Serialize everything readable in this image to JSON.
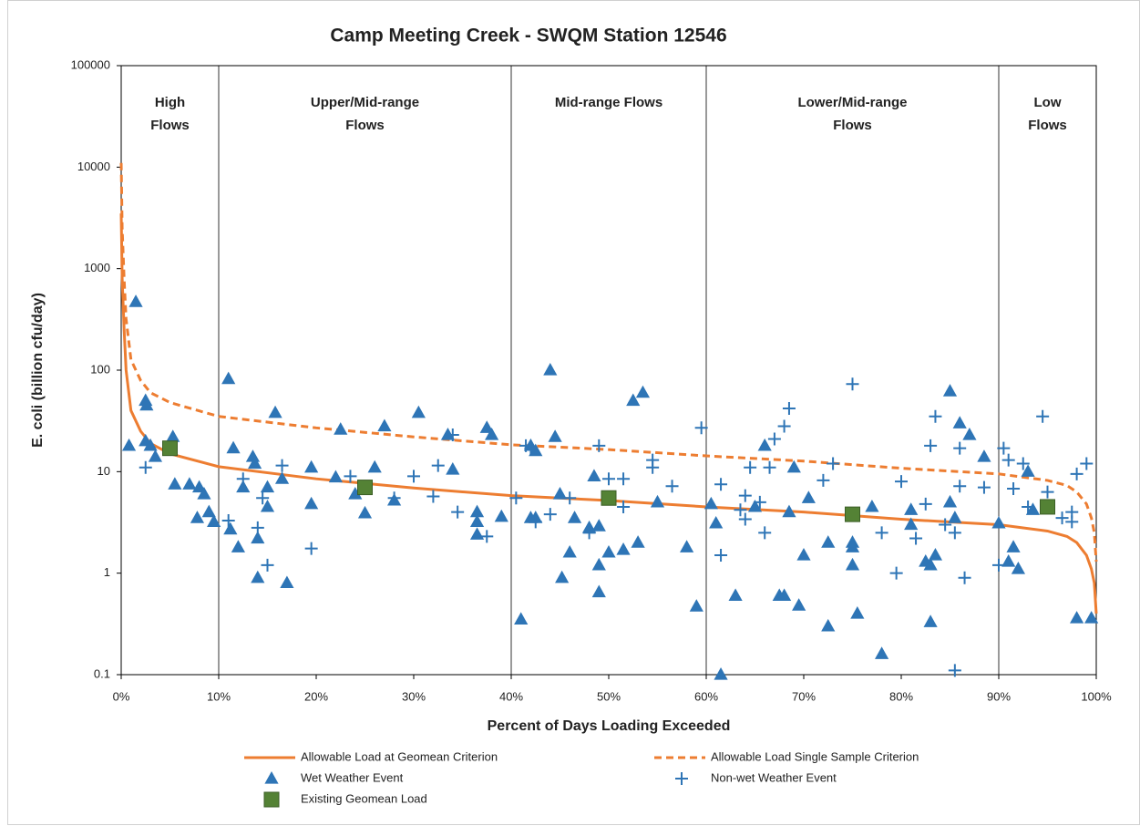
{
  "chart_data": {
    "type": "scatter",
    "title": "Camp Meeting Creek - SWQM Station 12546",
    "xlabel": "Percent of Days Loading Exceeded",
    "ylabel": "E. coli (billion cfu/day)",
    "xlim": [
      0,
      100
    ],
    "xticks": [
      {
        "value": 0,
        "label": "0%"
      },
      {
        "value": 10,
        "label": "10%"
      },
      {
        "value": 20,
        "label": "20%"
      },
      {
        "value": 30,
        "label": "30%"
      },
      {
        "value": 40,
        "label": "40%"
      },
      {
        "value": 50,
        "label": "50%"
      },
      {
        "value": 60,
        "label": "60%"
      },
      {
        "value": 70,
        "label": "70%"
      },
      {
        "value": 80,
        "label": "80%"
      },
      {
        "value": 90,
        "label": "90%"
      },
      {
        "value": 100,
        "label": "100%"
      }
    ],
    "ylim": [
      0.1,
      100000
    ],
    "yticks": [
      0.1,
      1,
      10,
      100,
      1000,
      10000,
      100000
    ],
    "ylog": true,
    "legend": "bottom",
    "regions": [
      {
        "label": [
          "High",
          "Flows"
        ],
        "from": 0,
        "to": 10
      },
      {
        "label": [
          "Upper/Mid-range",
          "Flows"
        ],
        "from": 10,
        "to": 40
      },
      {
        "label": [
          "Mid-range Flows"
        ],
        "from": 40,
        "to": 60
      },
      {
        "label": [
          "Lower/Mid-range",
          "Flows"
        ],
        "from": 60,
        "to": 90
      },
      {
        "label": [
          "Low",
          "Flows"
        ],
        "from": 90,
        "to": 100
      }
    ],
    "series": [
      {
        "name": "Allowable Load at Geomean Criterion",
        "kind": "line",
        "style": "solid",
        "color": "#ed7d31",
        "x": [
          0,
          0.1,
          0.3,
          0.5,
          1,
          2,
          3,
          5,
          10,
          20,
          30,
          40,
          50,
          60,
          70,
          80,
          90,
          95,
          97,
          98,
          99,
          99.5,
          99.8,
          100
        ],
        "values": [
          3500,
          800,
          250,
          100,
          40,
          25,
          19,
          15,
          11.2,
          8.5,
          6.9,
          5.8,
          5.2,
          4.5,
          4,
          3.4,
          3,
          2.6,
          2.3,
          2,
          1.5,
          1.1,
          0.8,
          0.4
        ]
      },
      {
        "name": "Allowable Load Single Sample Criterion",
        "kind": "line",
        "style": "dashed",
        "color": "#ed7d31",
        "x": [
          0,
          0.1,
          0.3,
          0.5,
          1,
          2,
          3,
          5,
          10,
          20,
          30,
          40,
          50,
          60,
          70,
          80,
          90,
          95,
          97,
          98,
          99,
          99.5,
          99.8,
          100
        ],
        "values": [
          11000,
          2500,
          790,
          320,
          127,
          79,
          60,
          48,
          35,
          27,
          22,
          18.4,
          16.5,
          14.3,
          12.7,
          10.8,
          9.5,
          8.2,
          7.3,
          6.3,
          4.8,
          3.5,
          2.5,
          1.3
        ]
      },
      {
        "name": "Wet Weather Event",
        "kind": "scatter",
        "marker": "triangle",
        "color": "#2e75b6",
        "x": [
          1.5,
          0.8,
          2.5,
          2.6,
          2.5,
          3,
          3.5,
          5.3,
          5.5,
          7,
          7.8,
          8,
          8.5,
          9,
          9.5,
          11,
          11.2,
          11.5,
          12,
          12.5,
          13.5,
          13.7,
          14,
          14,
          15,
          15,
          15.8,
          16.5,
          17,
          19.5,
          19.5,
          22,
          22.5,
          24,
          25,
          26,
          27,
          28,
          30.5,
          33.5,
          34,
          36.5,
          36.5,
          36.5,
          37.5,
          38,
          39,
          41,
          42,
          42,
          42.5,
          42.5,
          44,
          44.5,
          45,
          45.2,
          46,
          46.5,
          48,
          48.5,
          49,
          49,
          49,
          50,
          51.5,
          52.5,
          53,
          53.5,
          55,
          58,
          59,
          60.5,
          61,
          61.5,
          63,
          65,
          66,
          67.5,
          68,
          68.5,
          69,
          69.5,
          70,
          70.5,
          72.5,
          72.5,
          75,
          75,
          75,
          75.5,
          77,
          78,
          81,
          81,
          82.5,
          83,
          83.5,
          83,
          85,
          85,
          85.5,
          86,
          87,
          88.5,
          90,
          91,
          91.5,
          92,
          93,
          93.5,
          98,
          99.5
        ],
        "values": [
          470,
          18,
          50,
          45,
          20,
          18,
          14,
          22,
          7.5,
          7.5,
          3.5,
          7,
          6,
          4,
          3.2,
          82,
          2.7,
          17,
          1.8,
          7,
          14,
          12,
          2.2,
          0.9,
          7,
          4.5,
          38,
          8.5,
          0.8,
          11,
          4.8,
          8.8,
          26,
          6,
          3.9,
          11,
          28,
          5.2,
          38,
          23,
          10.5,
          4,
          3.2,
          2.4,
          27,
          23,
          3.6,
          0.35,
          18,
          3.5,
          16,
          3.5,
          100,
          22,
          6,
          0.9,
          1.6,
          3.5,
          2.8,
          9,
          2.9,
          1.2,
          0.65,
          1.6,
          1.7,
          50,
          2,
          60,
          5,
          1.8,
          0.47,
          4.8,
          3.1,
          0.1,
          0.6,
          4.5,
          18,
          0.6,
          0.6,
          4,
          11,
          0.48,
          1.5,
          5.5,
          2,
          0.3,
          1.2,
          1.8,
          2,
          0.4,
          4.5,
          0.16,
          3,
          4.2,
          1.3,
          1.2,
          1.5,
          0.33,
          62,
          5,
          3.5,
          30,
          23,
          14,
          3.1,
          1.3,
          1.8,
          1.1,
          10,
          4.2,
          0.36,
          0.36
        ]
      },
      {
        "name": "Non-wet Weather Event",
        "kind": "scatter",
        "marker": "plus",
        "color": "#2e75b6",
        "x": [
          2.5,
          11,
          12.5,
          14,
          14.5,
          15,
          16.5,
          19.5,
          23.5,
          28,
          30,
          32,
          32.5,
          34,
          34.5,
          37.5,
          40.5,
          41.5,
          42,
          42.5,
          44,
          46,
          48,
          49,
          50,
          51.5,
          51.5,
          54.5,
          54.5,
          56.5,
          59.5,
          61.5,
          61.5,
          63.5,
          64,
          64,
          64.5,
          65.5,
          66,
          66.5,
          67,
          68,
          68.5,
          72,
          73,
          75,
          78,
          79.5,
          80,
          81.5,
          82.5,
          83,
          83.5,
          84.5,
          85.5,
          85.5,
          86,
          86,
          86.5,
          88.5,
          90,
          90.5,
          91,
          91.5,
          92.5,
          93,
          94.5,
          95,
          96.5,
          97.5,
          97.5,
          98,
          99
        ],
        "values": [
          11,
          3.3,
          8.5,
          2.8,
          5.5,
          1.2,
          11.5,
          1.75,
          9,
          5.5,
          9,
          5.7,
          11.5,
          23,
          4,
          2.3,
          5.5,
          18,
          17,
          3.2,
          3.8,
          5.5,
          2.5,
          18,
          8.5,
          8.5,
          4.5,
          11,
          13,
          7.2,
          27,
          7.5,
          1.5,
          4.2,
          3.4,
          5.8,
          11,
          5,
          2.5,
          11,
          21,
          28,
          42,
          8.2,
          12,
          73,
          2.5,
          1,
          8,
          2.2,
          4.8,
          18,
          35,
          3,
          0.11,
          2.5,
          7.2,
          17,
          0.9,
          7,
          1.2,
          17,
          13,
          6.8,
          12,
          4.5,
          35,
          6.3,
          3.5,
          4,
          3.2,
          9.5,
          12
        ]
      },
      {
        "name": "Existing Geomean Load",
        "kind": "scatter",
        "marker": "square",
        "color": "#548235",
        "x": [
          5,
          25,
          50,
          75,
          95
        ],
        "values": [
          17,
          7,
          5.5,
          3.8,
          4.5
        ]
      }
    ]
  }
}
